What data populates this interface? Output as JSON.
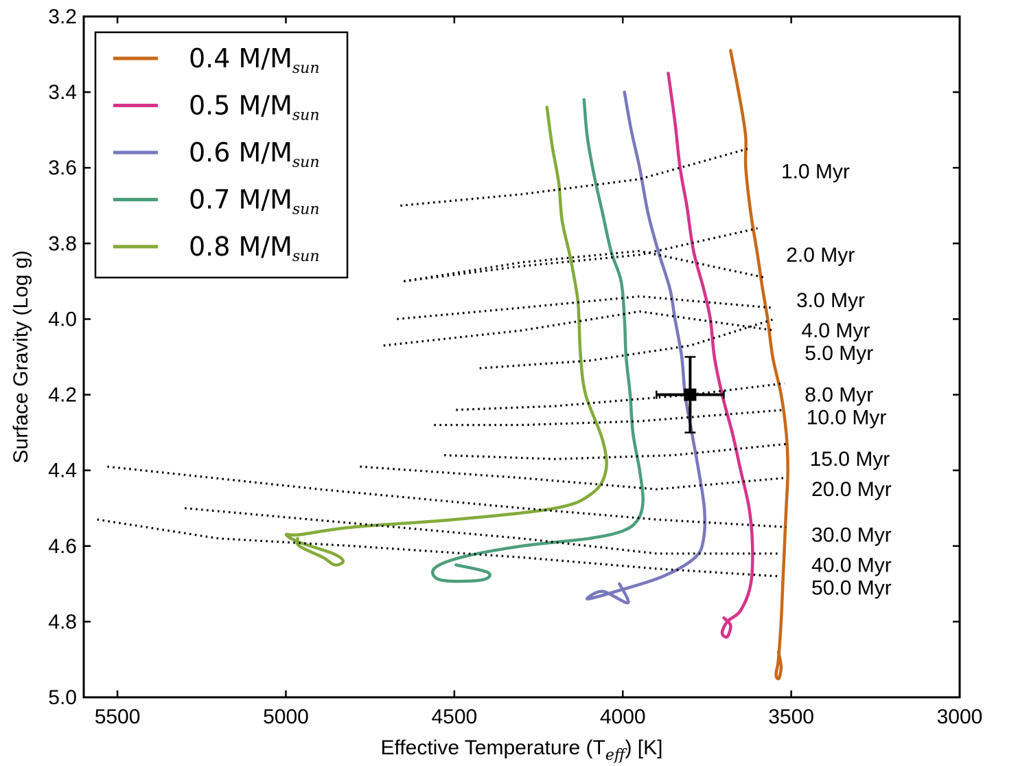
{
  "chart_data": {
    "type": "line",
    "xlabel_main": "Effective Temperature (T",
    "xlabel_sub": "eff",
    "xlabel_tail": ") [K]",
    "ylabel": "Surface Gravity (Log g)",
    "xlim": [
      5600,
      3000
    ],
    "ylim": [
      5.0,
      3.2
    ],
    "xticks": [
      "5500",
      "5000",
      "4500",
      "4000",
      "3500",
      "3000"
    ],
    "yticks": [
      "3.2",
      "3.4",
      "3.6",
      "3.8",
      "4.0",
      "4.2",
      "4.4",
      "4.6",
      "4.8",
      "5.0"
    ],
    "legend_position": "top-left",
    "series": [
      {
        "name": "0.4 M/M",
        "name_sub": "sun",
        "color": "#c8691a",
        "points": [
          [
            3680,
            3.29
          ],
          [
            3650,
            3.43
          ],
          [
            3635,
            3.52
          ],
          [
            3635,
            3.6
          ],
          [
            3620,
            3.72
          ],
          [
            3600,
            3.83
          ],
          [
            3585,
            3.92
          ],
          [
            3570,
            4.0
          ],
          [
            3555,
            4.1
          ],
          [
            3530,
            4.2
          ],
          [
            3515,
            4.3
          ],
          [
            3510,
            4.4
          ],
          [
            3515,
            4.5
          ],
          [
            3520,
            4.6
          ],
          [
            3525,
            4.7
          ],
          [
            3530,
            4.8
          ],
          [
            3538,
            4.9
          ],
          [
            3545,
            4.94
          ],
          [
            3537,
            4.95
          ],
          [
            3530,
            4.92
          ],
          [
            3538,
            4.88
          ]
        ]
      },
      {
        "name": "0.5 M/M",
        "name_sub": "sun",
        "color": "#d6338c",
        "points": [
          [
            3865,
            3.35
          ],
          [
            3845,
            3.48
          ],
          [
            3830,
            3.6
          ],
          [
            3810,
            3.7
          ],
          [
            3790,
            3.82
          ],
          [
            3760,
            3.92
          ],
          [
            3740,
            4.0
          ],
          [
            3728,
            4.1
          ],
          [
            3705,
            4.2
          ],
          [
            3675,
            4.3
          ],
          [
            3650,
            4.4
          ],
          [
            3625,
            4.5
          ],
          [
            3615,
            4.6
          ],
          [
            3620,
            4.7
          ],
          [
            3650,
            4.77
          ],
          [
            3690,
            4.8
          ],
          [
            3705,
            4.83
          ],
          [
            3690,
            4.84
          ],
          [
            3680,
            4.81
          ],
          [
            3700,
            4.79
          ]
        ]
      },
      {
        "name": "0.6 M/M",
        "name_sub": "sun",
        "color": "#7a78bd",
        "points": [
          [
            3995,
            3.4
          ],
          [
            3975,
            3.5
          ],
          [
            3950,
            3.6
          ],
          [
            3925,
            3.72
          ],
          [
            3895,
            3.82
          ],
          [
            3860,
            3.92
          ],
          [
            3845,
            4.0
          ],
          [
            3825,
            4.1
          ],
          [
            3815,
            4.2
          ],
          [
            3795,
            4.3
          ],
          [
            3775,
            4.4
          ],
          [
            3758,
            4.5
          ],
          [
            3760,
            4.58
          ],
          [
            3785,
            4.63
          ],
          [
            3880,
            4.68
          ],
          [
            4020,
            4.72
          ],
          [
            4105,
            4.74
          ],
          [
            4060,
            4.72
          ],
          [
            3985,
            4.75
          ],
          [
            4010,
            4.7
          ]
        ]
      },
      {
        "name": "0.7 M/M",
        "name_sub": "sun",
        "color": "#4c9e7c",
        "points": [
          [
            4115,
            3.42
          ],
          [
            4105,
            3.52
          ],
          [
            4085,
            3.62
          ],
          [
            4060,
            3.72
          ],
          [
            4035,
            3.82
          ],
          [
            4005,
            3.9
          ],
          [
            3995,
            4.0
          ],
          [
            3990,
            4.1
          ],
          [
            3978,
            4.2
          ],
          [
            3970,
            4.3
          ],
          [
            3950,
            4.4
          ],
          [
            3940,
            4.48
          ],
          [
            3955,
            4.53
          ],
          [
            4000,
            4.56
          ],
          [
            4100,
            4.58
          ],
          [
            4300,
            4.6
          ],
          [
            4480,
            4.63
          ],
          [
            4560,
            4.66
          ],
          [
            4540,
            4.69
          ],
          [
            4420,
            4.69
          ],
          [
            4400,
            4.67
          ],
          [
            4495,
            4.65
          ]
        ]
      },
      {
        "name": "0.8 M/M",
        "name_sub": "sun",
        "color": "#83ab3a",
        "points": [
          [
            4225,
            3.44
          ],
          [
            4210,
            3.54
          ],
          [
            4190,
            3.64
          ],
          [
            4180,
            3.74
          ],
          [
            4155,
            3.84
          ],
          [
            4135,
            3.94
          ],
          [
            4130,
            4.0
          ],
          [
            4125,
            4.1
          ],
          [
            4110,
            4.2
          ],
          [
            4060,
            4.32
          ],
          [
            4050,
            4.4
          ],
          [
            4090,
            4.46
          ],
          [
            4200,
            4.5
          ],
          [
            4500,
            4.53
          ],
          [
            4800,
            4.55
          ],
          [
            4960,
            4.57
          ],
          [
            4999,
            4.57
          ],
          [
            4960,
            4.59
          ],
          [
            4860,
            4.62
          ],
          [
            4830,
            4.64
          ],
          [
            4855,
            4.65
          ],
          [
            4890,
            4.63
          ],
          [
            4960,
            4.6
          ],
          [
            4965,
            4.58
          ]
        ]
      }
    ],
    "isochrones": [
      {
        "label": "1.0 Myr",
        "points": [
          [
            4660,
            3.7
          ],
          [
            4300,
            3.67
          ],
          [
            3950,
            3.63
          ],
          [
            3630,
            3.55
          ]
        ],
        "label_at": [
          3530,
          3.61
        ]
      },
      {
        "label": "2.0 Myr",
        "points": [
          [
            4650,
            3.9
          ],
          [
            4300,
            3.86
          ],
          [
            3950,
            3.83
          ],
          [
            3600,
            3.76
          ]
        ],
        "label_at": [
          3515,
          3.83
        ]
      },
      {
        "label": "3.0 Myr",
        "points": [
          [
            4650,
            3.9
          ],
          [
            4300,
            3.85
          ],
          [
            3950,
            3.82
          ],
          [
            3580,
            3.89
          ]
        ],
        "label_at": [
          3485,
          3.95
        ]
      },
      {
        "label": "4.0 Myr",
        "points": [
          [
            4670,
            4.0
          ],
          [
            4300,
            3.97
          ],
          [
            3950,
            3.94
          ],
          [
            3560,
            3.97
          ]
        ],
        "label_at": [
          3470,
          4.03
        ]
      },
      {
        "label": "5.0 Myr",
        "points": [
          [
            4710,
            4.07
          ],
          [
            4300,
            4.03
          ],
          [
            3950,
            3.98
          ],
          [
            3550,
            4.03
          ]
        ],
        "label_at": [
          3460,
          4.09
        ]
      },
      {
        "label": "8.0 Myr",
        "points": [
          [
            4425,
            4.13
          ],
          [
            4100,
            4.11
          ],
          [
            3800,
            4.07
          ],
          [
            3550,
            4.0
          ]
        ],
        "label_at": [
          3460,
          4.2
        ]
      },
      {
        "label": "10.0 Myr",
        "points": [
          [
            4495,
            4.24
          ],
          [
            4200,
            4.23
          ],
          [
            3800,
            4.2
          ],
          [
            3520,
            4.17
          ]
        ],
        "label_at": [
          3455,
          4.26
        ]
      },
      {
        "label": "15.0 Myr",
        "points": [
          [
            4560,
            4.28
          ],
          [
            4300,
            4.28
          ],
          [
            3950,
            4.27
          ],
          [
            3520,
            4.24
          ]
        ],
        "label_at": [
          3445,
          4.37
        ]
      },
      {
        "label": "20.0 Myr",
        "points": [
          [
            4530,
            4.36
          ],
          [
            4200,
            4.37
          ],
          [
            3850,
            4.36
          ],
          [
            3510,
            4.33
          ]
        ],
        "label_at": [
          3440,
          4.45
        ]
      },
      {
        "label": "30.0 Myr",
        "points": [
          [
            4780,
            4.39
          ],
          [
            4300,
            4.42
          ],
          [
            3900,
            4.45
          ],
          [
            3520,
            4.42
          ]
        ],
        "label_at": [
          3440,
          4.57
        ]
      },
      {
        "label": "40.0 Myr",
        "points": [
          [
            5530,
            4.39
          ],
          [
            4900,
            4.45
          ],
          [
            4300,
            4.5
          ],
          [
            3900,
            4.53
          ],
          [
            3515,
            4.55
          ]
        ],
        "label_at": [
          3440,
          4.65
        ]
      },
      {
        "label": "50.0 Myr",
        "points": [
          [
            5300,
            4.5
          ],
          [
            4800,
            4.54
          ],
          [
            4300,
            4.58
          ],
          [
            3900,
            4.62
          ],
          [
            3530,
            4.62
          ]
        ],
        "label_at": [
          3440,
          4.71
        ]
      },
      {
        "label": "",
        "points": [
          [
            5560,
            4.53
          ],
          [
            5200,
            4.58
          ],
          [
            4800,
            4.6
          ],
          [
            4300,
            4.63
          ],
          [
            3900,
            4.66
          ],
          [
            3540,
            4.68
          ]
        ],
        "label_at": null
      }
    ],
    "measurement": {
      "teff": 3800,
      "logg": 4.2,
      "teff_err": 100,
      "logg_err": 0.1
    }
  }
}
